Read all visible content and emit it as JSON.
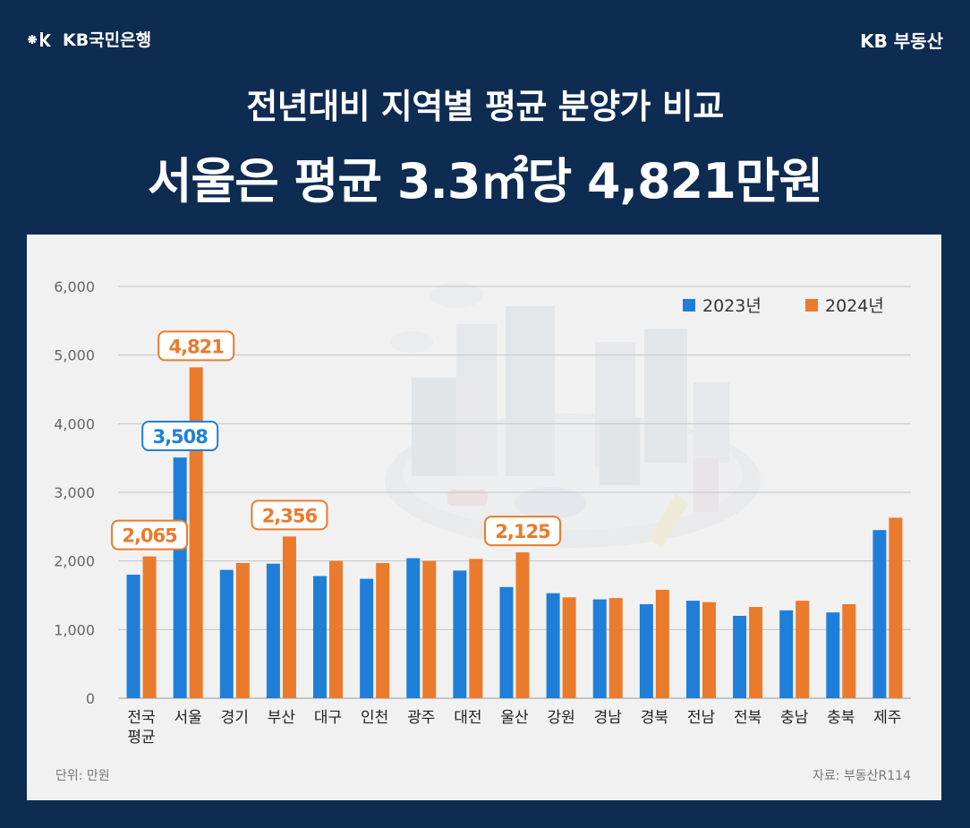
{
  "header": {
    "bank_logo_text": "KB국민은행",
    "brand_right": "KB 부동산",
    "title_line1": "전년대비 지역별 평균 분양가 비교",
    "title_line2": "서울은 평균 3.3㎡당 4,821만원"
  },
  "colors": {
    "background": "#0e2b52",
    "panel": "#f1f1f1",
    "series_2023": "#1f7fd8",
    "series_2024": "#ea7a2c"
  },
  "chart_data": {
    "type": "bar",
    "title": "전년대비 지역별 평균 분양가 비교",
    "ylim": [
      0,
      6000
    ],
    "yticks": [
      0,
      1000,
      2000,
      3000,
      4000,
      5000,
      6000
    ],
    "ytick_labels": [
      "0",
      "1,000",
      "2,000",
      "3,000",
      "4,000",
      "5,000",
      "6,000"
    ],
    "categories": [
      "전국 평균",
      "서울",
      "경기",
      "부산",
      "대구",
      "인천",
      "광주",
      "대전",
      "울산",
      "강원",
      "경남",
      "경북",
      "전남",
      "전북",
      "충남",
      "충북",
      "제주"
    ],
    "category_lines": [
      [
        "전국",
        "평균"
      ],
      [
        "서울"
      ],
      [
        "경기"
      ],
      [
        "부산"
      ],
      [
        "대구"
      ],
      [
        "인천"
      ],
      [
        "광주"
      ],
      [
        "대전"
      ],
      [
        "울산"
      ],
      [
        "강원"
      ],
      [
        "경남"
      ],
      [
        "경북"
      ],
      [
        "전남"
      ],
      [
        "전북"
      ],
      [
        "충남"
      ],
      [
        "충북"
      ],
      [
        "제주"
      ]
    ],
    "series": [
      {
        "name": "2023년",
        "color": "#1f7fd8",
        "values": [
          1800,
          3508,
          1870,
          1960,
          1780,
          1740,
          2040,
          1860,
          1620,
          1530,
          1440,
          1370,
          1420,
          1200,
          1280,
          1250,
          2450
        ]
      },
      {
        "name": "2024년",
        "color": "#ea7a2c",
        "values": [
          2065,
          4821,
          1970,
          2356,
          2000,
          1970,
          2000,
          2030,
          2125,
          1470,
          1460,
          1580,
          1400,
          1330,
          1420,
          1370,
          2630
        ]
      }
    ],
    "annotations": [
      {
        "category": "전국 평균",
        "series": "2024년",
        "text": "2,065"
      },
      {
        "category": "서울",
        "series": "2023년",
        "text": "3,508"
      },
      {
        "category": "서울",
        "series": "2024년",
        "text": "4,821"
      },
      {
        "category": "부산",
        "series": "2024년",
        "text": "2,356"
      },
      {
        "category": "울산",
        "series": "2024년",
        "text": "2,125"
      }
    ],
    "legend_position": "top-right",
    "unit_note": "단위: 만원",
    "source_note": "자료: 부동산R114"
  }
}
